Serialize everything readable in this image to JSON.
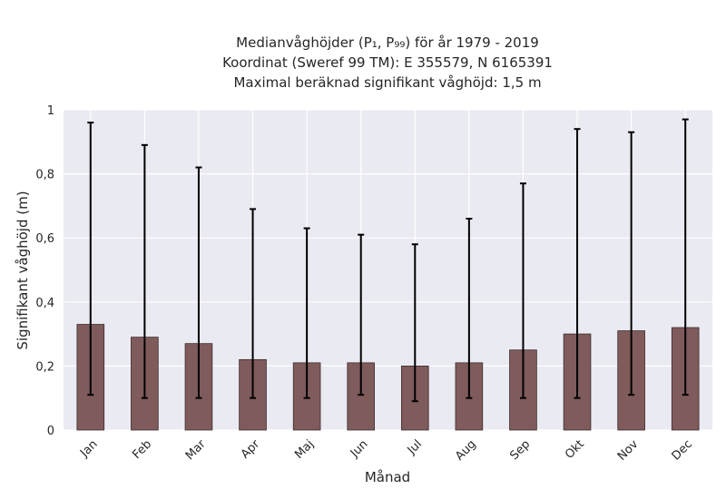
{
  "chart_data": {
    "type": "bar",
    "title_lines": [
      "Medianvåghöjder (P₁, P₉₉) för år 1979 - 2019",
      "Koordinat (Sweref 99 TM): E 355579, N 6165391",
      "Maximal beräknad signifikant våghöjd: 1,5 m"
    ],
    "xlabel": "Månad",
    "ylabel": "Signifikant våghöjd (m)",
    "categories": [
      "Jan",
      "Feb",
      "Mar",
      "Apr",
      "Maj",
      "Jun",
      "Jul",
      "Aug",
      "Sep",
      "Okt",
      "Nov",
      "Dec"
    ],
    "values": [
      0.33,
      0.29,
      0.27,
      0.22,
      0.21,
      0.21,
      0.2,
      0.21,
      0.25,
      0.3,
      0.31,
      0.32
    ],
    "p1": [
      0.11,
      0.1,
      0.1,
      0.1,
      0.1,
      0.11,
      0.09,
      0.1,
      0.1,
      0.1,
      0.11,
      0.11
    ],
    "p99": [
      0.96,
      0.89,
      0.82,
      0.69,
      0.63,
      0.61,
      0.58,
      0.66,
      0.77,
      0.94,
      0.93,
      0.97
    ],
    "ylim": [
      0,
      1
    ],
    "yticks": [
      0,
      0.2,
      0.4,
      0.6,
      0.8,
      1
    ],
    "ytick_labels": [
      "0",
      "0,2",
      "0,4",
      "0,6",
      "0,8",
      "1"
    ],
    "grid": true,
    "colors": {
      "bar": "#7f5b5b",
      "bar_edge": "#3d2c2c",
      "error_bar": "#000000",
      "plot_background": "#eaeaf2",
      "grid": "#ffffff"
    }
  }
}
